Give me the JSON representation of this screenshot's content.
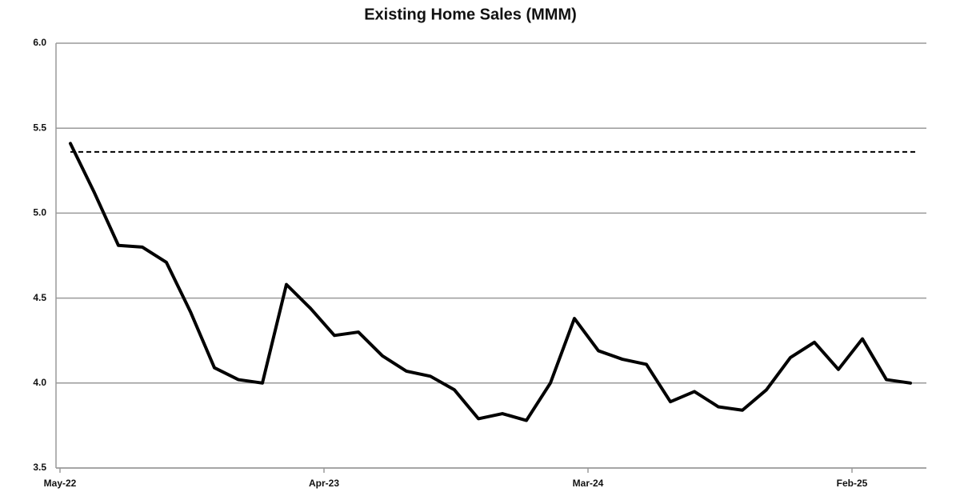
{
  "chart_data": {
    "type": "line",
    "title": "Existing Home Sales (MMM)",
    "categories": [
      "May-22",
      null,
      null,
      null,
      null,
      null,
      null,
      null,
      null,
      null,
      null,
      "Apr-23",
      null,
      null,
      null,
      null,
      null,
      null,
      null,
      null,
      null,
      null,
      "Mar-24",
      null,
      null,
      null,
      null,
      null,
      null,
      null,
      null,
      null,
      null,
      "Feb-25",
      null,
      null
    ],
    "values": [
      5.41,
      5.12,
      4.81,
      4.8,
      4.71,
      4.42,
      4.09,
      4.02,
      4.0,
      4.58,
      4.44,
      4.28,
      4.3,
      4.16,
      4.07,
      4.04,
      3.96,
      3.79,
      3.82,
      3.78,
      4.0,
      4.38,
      4.19,
      4.14,
      4.11,
      3.89,
      3.95,
      3.86,
      3.84,
      3.96,
      4.15,
      4.24,
      4.08,
      4.26,
      4.02,
      4.0
    ],
    "color": "#000000",
    "reference_line": {
      "value": 5.36,
      "color": "#000000",
      "style": "dashed"
    },
    "ylim": [
      3.5,
      6.0
    ],
    "yticks": [
      3.5,
      {
        "value": 4.0,
        "label": "4.0"
      },
      4.5,
      {
        "value": 5.0,
        "label": "5.0"
      },
      5.5,
      {
        "value": 6.0,
        "label": "6.0"
      }
    ],
    "grid": true
  }
}
